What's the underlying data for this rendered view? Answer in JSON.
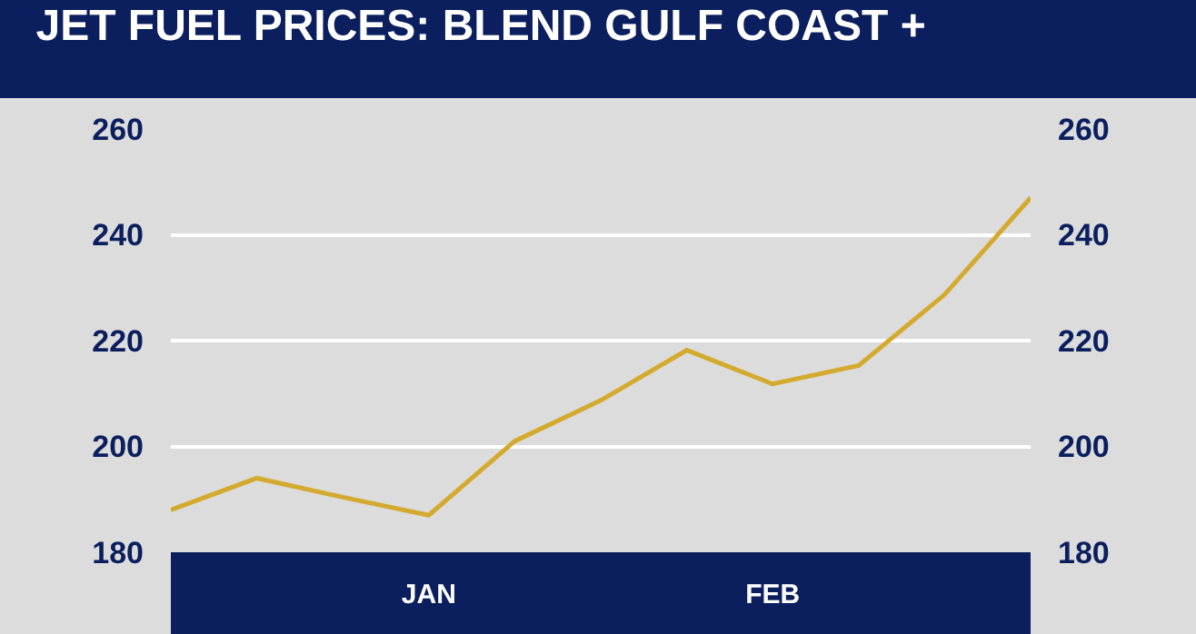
{
  "chart_data": {
    "type": "line",
    "title": "JET FUEL PRICES: BLEND GULF COAST +",
    "categories": [
      null,
      null,
      null,
      "JAN",
      null,
      null,
      null,
      "FEB",
      null,
      null,
      null
    ],
    "series": [
      {
        "color": "#d4aa2e",
        "values": [
          188,
          194,
          190.4,
          187,
          201,
          208.7,
          218.2,
          211.8,
          215.3,
          228.7,
          247
        ]
      }
    ],
    "ylim": [
      180,
      260
    ],
    "yticks": [
      180,
      200,
      220,
      240,
      260
    ],
    "y2lim": [
      180,
      260
    ],
    "y2ticks": [
      180,
      200,
      220,
      240,
      260
    ],
    "grid": "y",
    "marker": "none",
    "line_style": "solid"
  }
}
